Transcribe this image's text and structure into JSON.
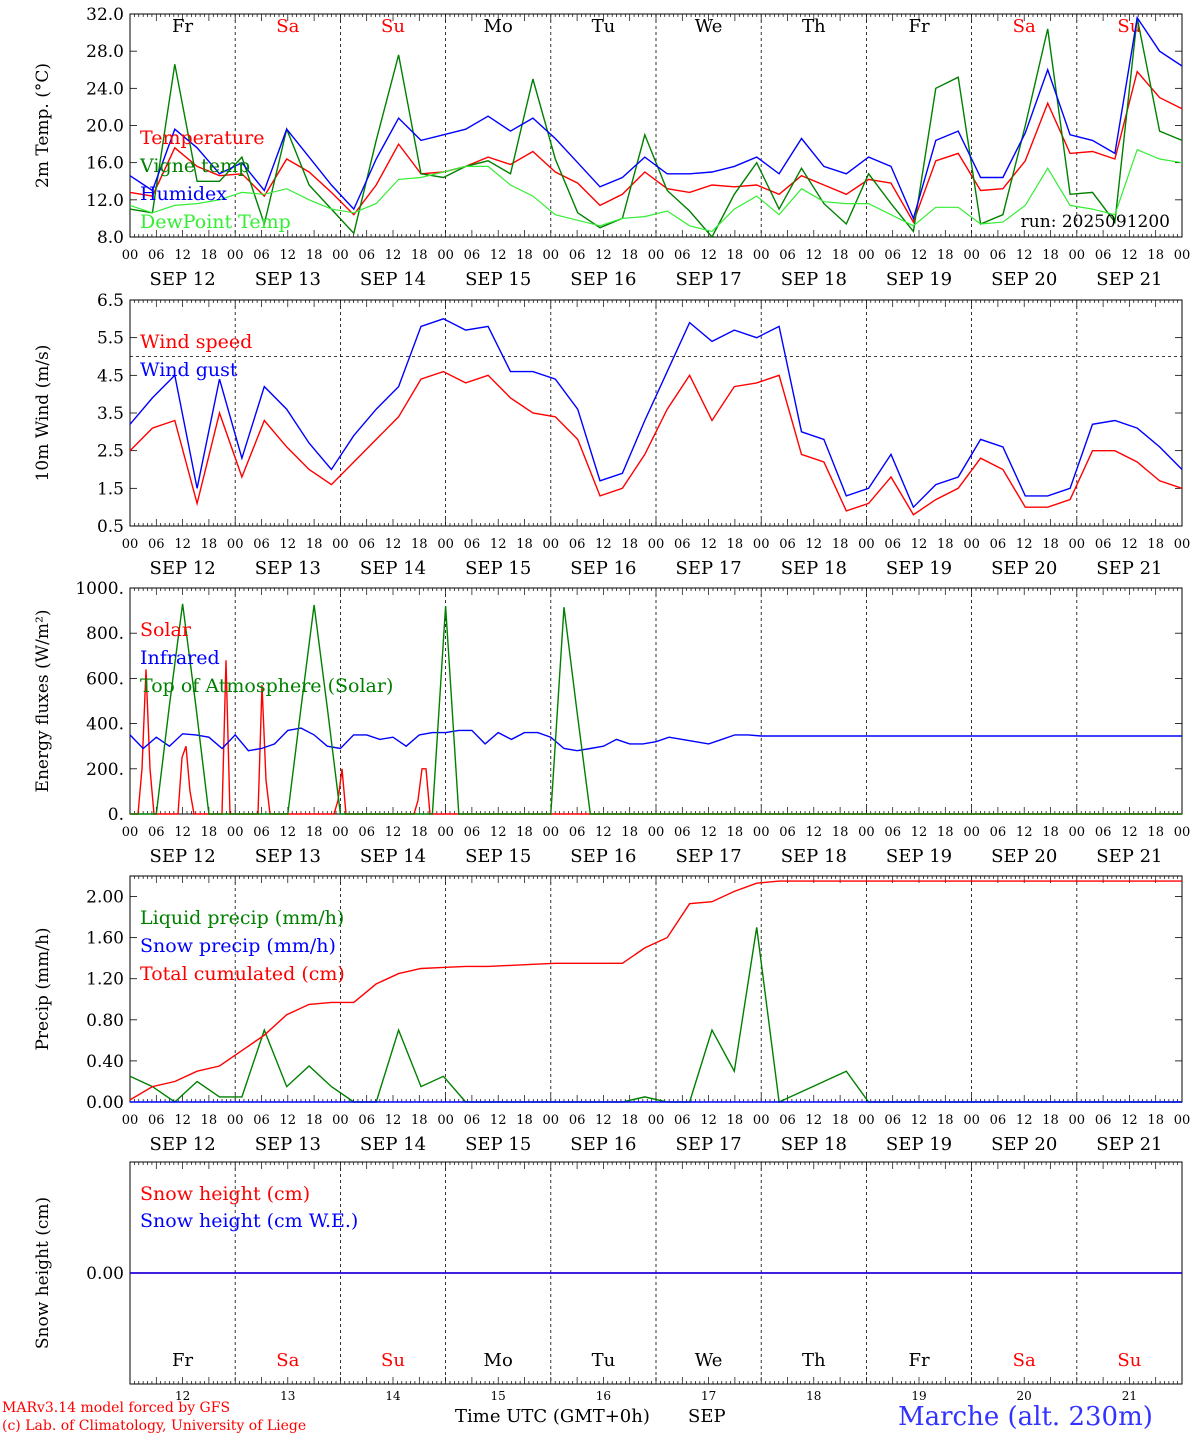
{
  "colors": {
    "red": "#ff0000",
    "green": "#008000",
    "blue": "#0000ff",
    "lightgreen": "#33ee33",
    "black": "#000000",
    "weekend": "#ff0000"
  },
  "days": {
    "names": [
      "Fr",
      "Sa",
      "Su",
      "Mo",
      "Tu",
      "We",
      "Th",
      "Fr",
      "Sa",
      "Su"
    ],
    "weekend": [
      false,
      true,
      true,
      false,
      false,
      false,
      false,
      false,
      true,
      true
    ],
    "dates": [
      "SEP 12",
      "SEP 13",
      "SEP 14",
      "SEP 15",
      "SEP 16",
      "SEP 17",
      "SEP 18",
      "SEP 19",
      "SEP 20",
      "SEP 21"
    ],
    "hour_labels": [
      "00",
      "06",
      "12",
      "18"
    ],
    "end_hour_label": "00",
    "day_numbers": [
      "12",
      "13",
      "14",
      "15",
      "16",
      "17",
      "18",
      "19",
      "20",
      "21"
    ]
  },
  "footer": {
    "model": "MARv3.14 model forced by GFS",
    "lab": "(c) Lab. of Climatology, University of Liege",
    "xlabel": "Time UTC (GMT+0h)",
    "month": "SEP",
    "station": "Marche (alt. 230m)"
  },
  "chart_data": [
    {
      "type": "line",
      "ylabel": "2m Temp. (°C)",
      "ylim": [
        8.0,
        32.0
      ],
      "yticks": [
        "8.0",
        "12.0",
        "16.0",
        "20.0",
        "24.0",
        "28.0",
        "32.0"
      ],
      "annotation": "run: 2025091200",
      "show_days": true,
      "x_hours_step": 6,
      "series": [
        {
          "name": "Temperature",
          "color": "red",
          "values": [
            12.8,
            12.4,
            17.6,
            15.6,
            14.6,
            14.8,
            12.4,
            16.4,
            15.0,
            12.8,
            10.4,
            13.6,
            18.0,
            14.8,
            15.0,
            15.6,
            16.6,
            15.8,
            17.2,
            15.0,
            13.8,
            11.4,
            12.6,
            15.0,
            13.2,
            12.8,
            13.6,
            13.4,
            13.6,
            12.6,
            14.6,
            13.6,
            12.6,
            14.2,
            13.8,
            9.6,
            16.2,
            17.0,
            13.0,
            13.2,
            16.2,
            22.4,
            17.0,
            17.2,
            16.4,
            25.8,
            23.0,
            21.8
          ]
        },
        {
          "name": "Vigne temp",
          "color": "green",
          "values": [
            11.0,
            10.6,
            26.6,
            14.0,
            14.0,
            16.6,
            9.4,
            19.6,
            13.6,
            11.0,
            8.4,
            18.4,
            27.6,
            14.8,
            14.4,
            15.6,
            16.2,
            14.8,
            25.0,
            16.4,
            10.6,
            9.0,
            10.0,
            19.0,
            13.0,
            10.8,
            7.8,
            12.6,
            16.0,
            11.0,
            15.4,
            11.6,
            9.4,
            14.8,
            11.6,
            8.6,
            24.0,
            25.2,
            9.4,
            10.4,
            20.0,
            30.4,
            12.6,
            12.8,
            9.6,
            31.6,
            19.4,
            18.4
          ]
        },
        {
          "name": "Humidex",
          "color": "blue",
          "values": [
            14.6,
            13.0,
            19.6,
            17.6,
            14.8,
            16.0,
            13.0,
            19.6,
            16.6,
            13.6,
            11.0,
            16.4,
            20.8,
            18.4,
            19.0,
            19.6,
            21.0,
            19.4,
            20.8,
            18.6,
            16.0,
            13.4,
            14.4,
            16.6,
            14.8,
            14.8,
            15.0,
            15.6,
            16.6,
            14.8,
            18.6,
            15.6,
            14.8,
            16.6,
            15.6,
            10.0,
            18.4,
            19.4,
            14.4,
            14.4,
            19.2,
            26.0,
            19.0,
            18.4,
            17.0,
            31.6,
            28.0,
            26.4
          ]
        },
        {
          "name": "DewPoint Temp",
          "color": "lightgreen",
          "values": [
            11.4,
            10.6,
            11.4,
            11.6,
            12.0,
            12.8,
            12.6,
            13.2,
            12.0,
            11.0,
            10.6,
            11.6,
            14.2,
            14.4,
            15.0,
            15.6,
            15.6,
            13.6,
            12.4,
            10.4,
            9.8,
            9.2,
            10.0,
            10.2,
            10.8,
            9.2,
            8.6,
            11.0,
            12.4,
            10.4,
            13.2,
            11.8,
            11.6,
            11.6,
            10.4,
            9.2,
            11.2,
            11.2,
            9.4,
            9.6,
            11.4,
            15.4,
            11.4,
            11.0,
            10.4,
            17.4,
            16.4,
            16.0
          ]
        }
      ]
    },
    {
      "type": "line",
      "ylabel": "10m Wind (m/s)",
      "ylim": [
        0.5,
        6.5
      ],
      "yticks": [
        "0.5",
        "1.5",
        "2.5",
        "3.5",
        "4.5",
        "5.5",
        "6.5"
      ],
      "dashed_hline": 5.0,
      "show_days": false,
      "x_hours_step": 6,
      "series": [
        {
          "name": "Wind speed",
          "color": "red",
          "values": [
            2.5,
            3.1,
            3.3,
            1.1,
            3.5,
            1.8,
            3.3,
            2.6,
            2.0,
            1.6,
            2.2,
            2.8,
            3.4,
            4.4,
            4.6,
            4.3,
            4.5,
            3.9,
            3.5,
            3.4,
            2.8,
            1.3,
            1.5,
            2.4,
            3.6,
            4.5,
            3.3,
            4.2,
            4.3,
            4.5,
            2.4,
            2.2,
            0.9,
            1.1,
            1.8,
            0.8,
            1.2,
            1.5,
            2.3,
            2.0,
            1.0,
            1.0,
            1.2,
            2.5,
            2.5,
            2.2,
            1.7,
            1.5
          ]
        },
        {
          "name": "Wind gust",
          "color": "blue",
          "values": [
            3.2,
            3.9,
            4.5,
            1.5,
            4.4,
            2.3,
            4.2,
            3.6,
            2.7,
            2.0,
            2.9,
            3.6,
            4.2,
            5.8,
            6.0,
            5.7,
            5.8,
            4.6,
            4.6,
            4.4,
            3.6,
            1.7,
            1.9,
            3.3,
            4.6,
            5.9,
            5.4,
            5.7,
            5.5,
            5.8,
            3.0,
            2.8,
            1.3,
            1.5,
            2.4,
            1.0,
            1.6,
            1.8,
            2.8,
            2.6,
            1.3,
            1.3,
            1.5,
            3.2,
            3.3,
            3.1,
            2.6,
            2.0
          ]
        }
      ]
    },
    {
      "type": "line",
      "ylabel": "Energy fluxes (W/m²)",
      "ylim": [
        0,
        1000
      ],
      "yticks": [
        "0.",
        "200.",
        "400.",
        "600.",
        "800.",
        "1000."
      ],
      "show_days": false,
      "x_hours_step": 3,
      "series": [
        {
          "name": "Solar",
          "color": "red",
          "values": [
            0,
            0,
            0,
            200,
            640,
            200,
            0,
            0,
            0,
            0,
            0,
            0,
            0,
            250,
            300,
            100,
            0,
            0,
            0,
            0,
            0,
            0,
            0,
            0,
            680,
            0,
            0,
            0,
            0,
            0,
            0,
            0,
            0,
            570,
            150,
            0,
            0,
            0,
            0,
            0,
            0,
            0,
            0,
            0,
            0,
            0,
            0,
            0,
            0,
            0,
            0,
            0,
            60,
            200,
            0,
            0,
            0,
            0,
            0,
            0,
            0,
            0,
            0,
            0,
            0,
            0,
            0,
            0,
            0,
            0,
            0,
            0,
            60,
            200,
            200,
            0,
            0,
            0,
            0,
            0,
            0,
            0,
            0,
            0,
            0,
            0,
            0,
            0,
            0,
            0,
            0,
            0,
            0,
            0,
            0,
            0,
            0,
            0,
            0,
            0,
            0,
            0,
            0,
            0,
            0,
            0,
            0,
            0,
            0,
            0,
            0,
            0,
            0,
            0,
            0,
            0,
            0,
            0,
            0,
            0,
            0,
            0,
            0,
            0,
            0,
            0,
            0,
            0,
            0,
            0,
            0,
            0,
            0,
            0,
            0,
            0,
            0,
            0,
            0,
            0,
            0,
            0,
            0,
            0,
            0,
            0,
            0,
            0,
            0,
            0,
            0,
            0,
            0,
            0,
            0,
            0,
            0,
            0,
            0,
            0,
            0,
            0,
            0,
            0,
            0,
            0,
            0,
            0,
            0,
            0,
            0,
            0,
            0,
            0,
            0,
            0,
            0,
            0,
            0,
            0,
            0,
            0,
            0,
            0,
            0,
            0,
            0,
            0,
            0,
            0,
            0,
            0,
            0,
            0,
            0,
            0,
            0,
            0,
            0,
            0,
            0,
            0,
            0,
            0,
            0,
            0,
            0,
            0,
            0,
            0,
            0,
            0,
            0,
            0,
            0,
            0,
            0,
            0,
            0,
            0,
            0,
            0,
            0,
            0,
            0,
            0,
            0,
            0,
            0,
            0,
            0,
            0,
            0,
            0,
            0,
            0,
            0,
            0,
            0,
            0,
            0,
            0,
            0,
            0,
            0,
            0,
            0,
            0,
            0,
            0,
            0,
            0,
            0,
            0,
            0,
            0,
            0,
            0,
            0,
            0,
            0,
            0,
            0,
            0
          ]
        },
        {
          "name": "Infrared",
          "color": "blue",
          "values": [
            350,
            290,
            340,
            300,
            355,
            350,
            340,
            290,
            350,
            280,
            290,
            310,
            370,
            380,
            350,
            300,
            290,
            350,
            350,
            330,
            340,
            300,
            350,
            360,
            360,
            370,
            370,
            310,
            360,
            330,
            360,
            360,
            340,
            290,
            280,
            290,
            300,
            330,
            310,
            310,
            320,
            340,
            330,
            320,
            310,
            330,
            350,
            350,
            345,
            345,
            345,
            345,
            345,
            345,
            345,
            345,
            345,
            345,
            345,
            345,
            345,
            345,
            345,
            345,
            345,
            345,
            345,
            345,
            345,
            345,
            345,
            345,
            345,
            345,
            345,
            345,
            345,
            345,
            345,
            345,
            345
          ]
        },
        {
          "name": "Top of Atmosphere (Solar)",
          "color": "green",
          "values": [
            0,
            0,
            0,
            480,
            930,
            480,
            0,
            0,
            0,
            0,
            0,
            0,
            0,
            470,
            925,
            470,
            0,
            0,
            0,
            0,
            0,
            0,
            0,
            0,
            920,
            0,
            0,
            0,
            0,
            0,
            0,
            0,
            0,
            915,
            450,
            0,
            0,
            0,
            0,
            0,
            0,
            0,
            0,
            0,
            0,
            0,
            0,
            0,
            0,
            0,
            0,
            0,
            0,
            0,
            0,
            0,
            0,
            0,
            0,
            0,
            0,
            0,
            0,
            0,
            0,
            0,
            0,
            0,
            0,
            0,
            0,
            0,
            0,
            0,
            0,
            0,
            0,
            0,
            0,
            0,
            0
          ]
        }
      ]
    },
    {
      "type": "line",
      "ylabel": "Precip (mm/h)",
      "ylim": [
        0,
        2.2
      ],
      "yticks": [
        "0.00",
        "0.40",
        "0.80",
        "1.20",
        "1.60",
        "2.00"
      ],
      "show_days": false,
      "x_hours_step": 6,
      "series": [
        {
          "name": "Liquid precip (mm/h)",
          "color": "green",
          "values": [
            0.25,
            0.15,
            0.0,
            0.2,
            0.05,
            0.05,
            0.7,
            0.15,
            0.35,
            0.15,
            0.0,
            0.0,
            0.7,
            0.15,
            0.25,
            0.0,
            0.0,
            0.0,
            0.0,
            0.0,
            0.0,
            0.0,
            0.0,
            0.05,
            0.0,
            0.0,
            0.7,
            0.3,
            1.7,
            0.0,
            0.1,
            0.2,
            0.3,
            0.0,
            0.0,
            0.0,
            0.0,
            0.0,
            0.0,
            0.0,
            0.0,
            0.0,
            0.0,
            0.0,
            0.0,
            0.0,
            0.0,
            0.0
          ]
        },
        {
          "name": "Snow precip (mm/h)",
          "color": "blue",
          "values": [
            0.0,
            0.0,
            0.0,
            0.0,
            0.0,
            0.0,
            0.0,
            0.0,
            0.0,
            0.0,
            0.0,
            0.0,
            0.0,
            0.0,
            0.0,
            0.0,
            0.0,
            0.0,
            0.0,
            0.0,
            0.0,
            0.0,
            0.0,
            0.0,
            0.0,
            0.0,
            0.0,
            0.0,
            0.0,
            0.0,
            0.0,
            0.0,
            0.0,
            0.0,
            0.0,
            0.0,
            0.0,
            0.0,
            0.0,
            0.0,
            0.0,
            0.0,
            0.0,
            0.0,
            0.0,
            0.0,
            0.0,
            0.0
          ]
        },
        {
          "name": "Total cumulated (cm)",
          "color": "red",
          "values": [
            0.02,
            0.15,
            0.2,
            0.3,
            0.35,
            0.5,
            0.65,
            0.85,
            0.95,
            0.97,
            0.97,
            1.15,
            1.25,
            1.3,
            1.31,
            1.32,
            1.32,
            1.33,
            1.34,
            1.35,
            1.35,
            1.35,
            1.35,
            1.5,
            1.6,
            1.93,
            1.95,
            2.05,
            2.13,
            2.15,
            2.15,
            2.15,
            2.15,
            2.15,
            2.15,
            2.15,
            2.15,
            2.15,
            2.15,
            2.15,
            2.15,
            2.15,
            2.15,
            2.15,
            2.15,
            2.15,
            2.15,
            2.15
          ]
        }
      ]
    },
    {
      "type": "line",
      "ylabel": "Snow height (cm)",
      "ylim": [
        -1,
        1
      ],
      "yticks": [
        "0.00"
      ],
      "show_days": false,
      "x_hours_step": 6,
      "series": [
        {
          "name": "Snow height (cm)",
          "color": "red",
          "values": [
            0,
            0,
            0,
            0,
            0,
            0,
            0,
            0,
            0,
            0,
            0,
            0,
            0,
            0,
            0,
            0,
            0,
            0,
            0,
            0,
            0,
            0,
            0,
            0,
            0,
            0,
            0,
            0,
            0,
            0,
            0,
            0,
            0,
            0,
            0,
            0,
            0,
            0,
            0,
            0,
            0,
            0,
            0,
            0,
            0,
            0,
            0,
            0
          ]
        },
        {
          "name": "Snow height (cm W.E.)",
          "color": "blue",
          "values": [
            0,
            0,
            0,
            0,
            0,
            0,
            0,
            0,
            0,
            0,
            0,
            0,
            0,
            0,
            0,
            0,
            0,
            0,
            0,
            0,
            0,
            0,
            0,
            0,
            0,
            0,
            0,
            0,
            0,
            0,
            0,
            0,
            0,
            0,
            0,
            0,
            0,
            0,
            0,
            0,
            0,
            0,
            0,
            0,
            0,
            0,
            0,
            0
          ]
        }
      ]
    }
  ]
}
